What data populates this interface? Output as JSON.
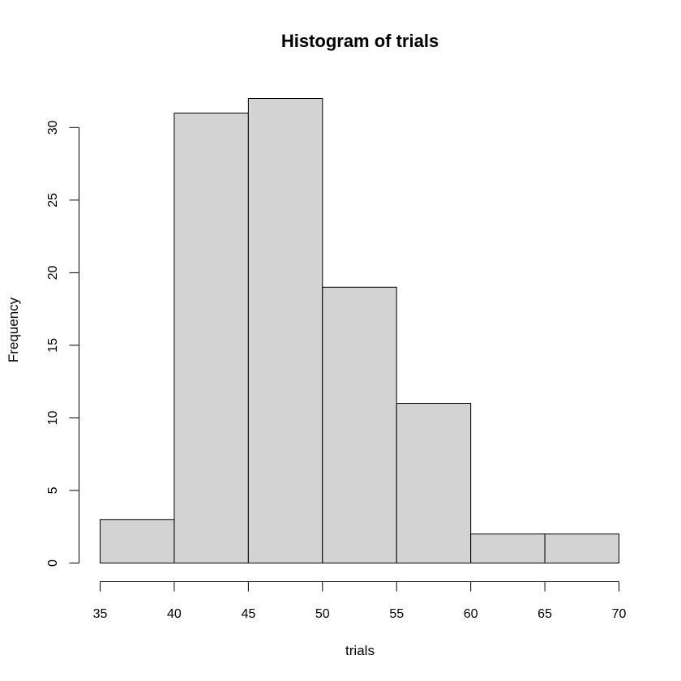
{
  "chart_data": {
    "type": "bar",
    "title": "Histogram of trials",
    "xlabel": "trials",
    "ylabel": "Frequency",
    "bins": [
      [
        35,
        40
      ],
      [
        40,
        45
      ],
      [
        45,
        50
      ],
      [
        50,
        55
      ],
      [
        55,
        60
      ],
      [
        60,
        65
      ],
      [
        65,
        70
      ]
    ],
    "values": [
      3,
      31,
      32,
      19,
      11,
      2,
      2
    ],
    "x_ticks": [
      35,
      40,
      45,
      50,
      55,
      60,
      65,
      70
    ],
    "y_ticks": [
      0,
      5,
      10,
      15,
      20,
      25,
      30
    ],
    "xlim": [
      35,
      70
    ],
    "ylim": [
      0,
      32
    ],
    "bar_color": "#d3d3d3",
    "grid": false
  }
}
